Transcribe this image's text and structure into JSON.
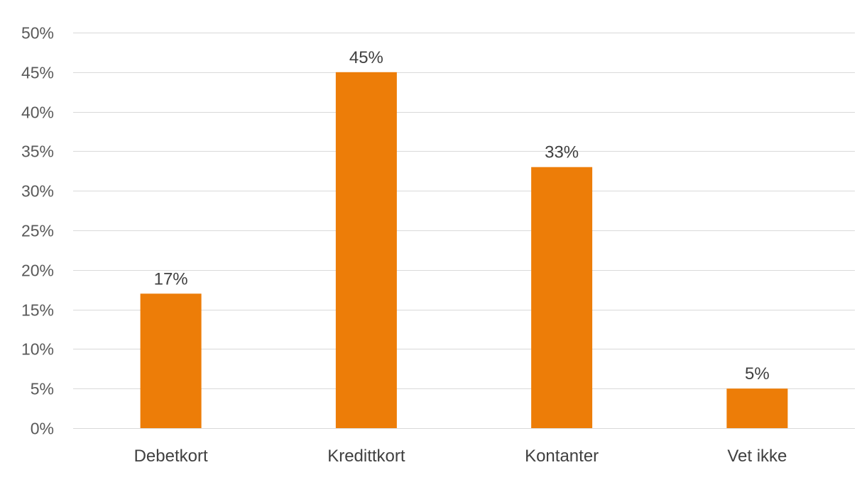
{
  "chart_data": {
    "type": "bar",
    "title": "",
    "xlabel": "",
    "ylabel": "",
    "categories": [
      "Debetkort",
      "Kredittkort",
      "Kontanter",
      "Vet ikke"
    ],
    "values": [
      17,
      45,
      33,
      5
    ],
    "data_labels": [
      "17%",
      "45%",
      "33%",
      "5%"
    ],
    "ylim": [
      0,
      50
    ],
    "y_ticks": [
      0,
      5,
      10,
      15,
      20,
      25,
      30,
      35,
      40,
      45,
      50
    ],
    "y_tick_labels": [
      "0%",
      "5%",
      "10%",
      "15%",
      "20%",
      "25%",
      "30%",
      "35%",
      "40%",
      "45%",
      "50%"
    ],
    "grid": true,
    "legend": "none",
    "bar_color": "#ed7d08",
    "grid_color": "#d9d9d9"
  }
}
